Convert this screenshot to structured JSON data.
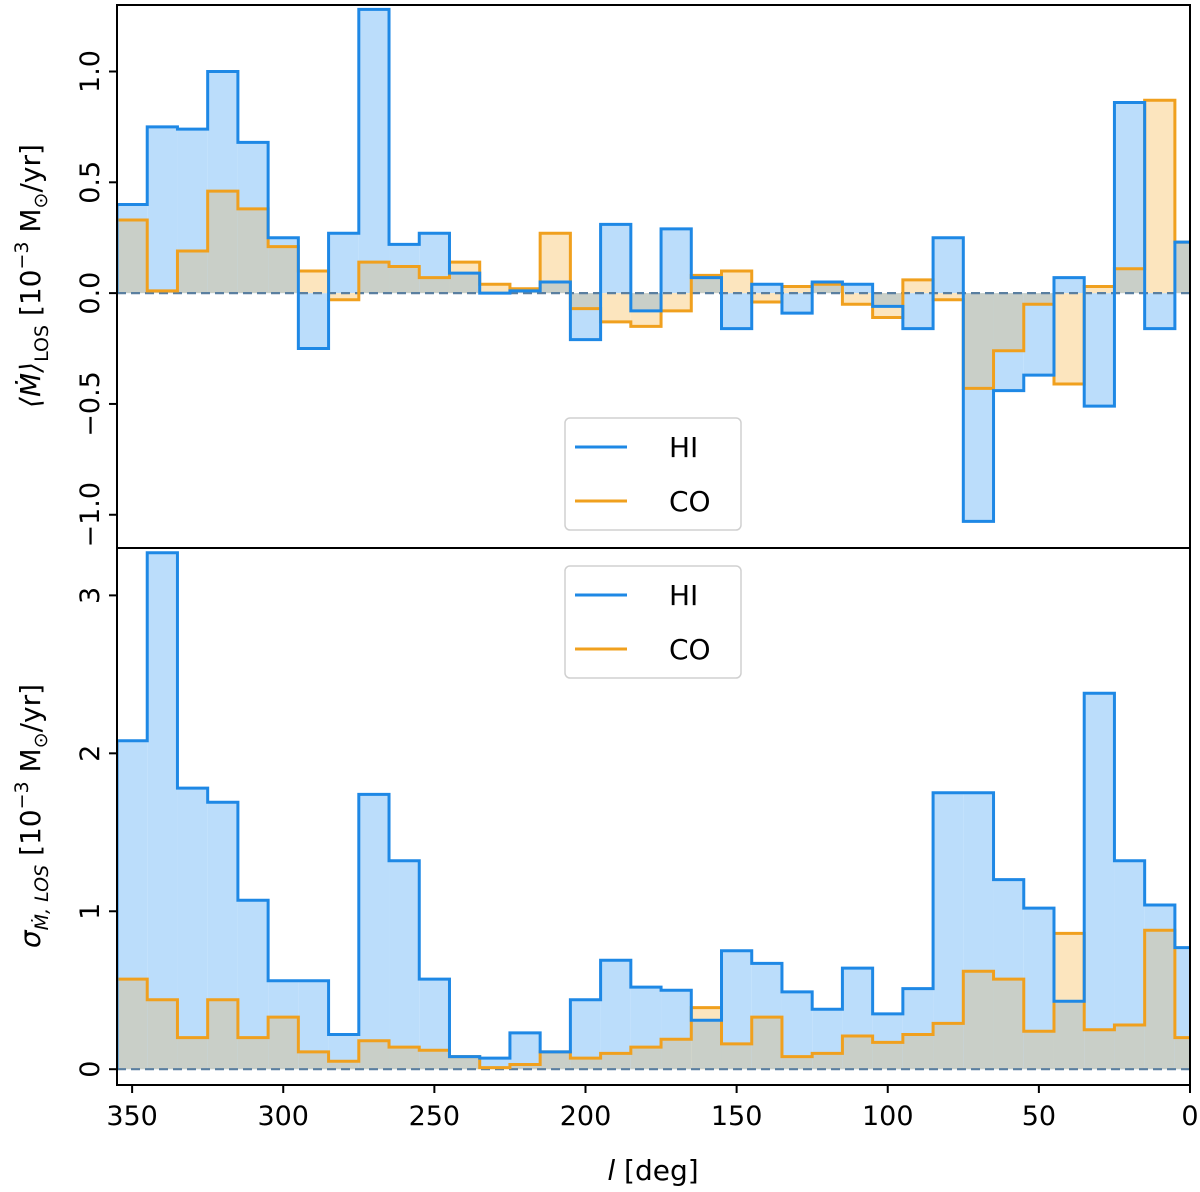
{
  "colors": {
    "hi": "#1E88E5",
    "hi_fill": "#BBDDFB",
    "co": "#F0A01E",
    "co_fill": "#FCE5BE",
    "overlap_fill": "#C9CFC8",
    "zero_line": "#5A7FA0"
  },
  "chart_data": [
    {
      "type": "step",
      "title": "",
      "ylabel": "⟨Ṁ⟩_LOS [10^−3 M_⊙/yr]",
      "ylabel_parts": {
        "main": "⟨",
        "dot_m": "Ṁ",
        "close": "⟩",
        "sub": "LOS",
        "units_open": " [10",
        "exp": "−3",
        "units_m": " M",
        "sun_sub": "⊙",
        "units_close": "/yr]"
      },
      "xlim": [
        355,
        0
      ],
      "ylim": [
        -1.15,
        1.3
      ],
      "yticks": [
        {
          "v": 1.0,
          "label": "1.0"
        },
        {
          "v": 0.5,
          "label": "0.5"
        },
        {
          "v": 0.0,
          "label": "0.0"
        },
        {
          "v": -0.5,
          "label": "−0.5"
        },
        {
          "v": -1.0,
          "label": "−1.0"
        }
      ],
      "legend_placement": "lower-center",
      "legend": [
        {
          "key": "hi",
          "label": "HI"
        },
        {
          "key": "co",
          "label": "CO"
        }
      ],
      "bin_left_edges": [
        355,
        345,
        335,
        325,
        315,
        305,
        295,
        285,
        275,
        265,
        255,
        245,
        235,
        225,
        215,
        205,
        195,
        185,
        175,
        165,
        155,
        145,
        135,
        125,
        115,
        105,
        95,
        85,
        75,
        65,
        55,
        45,
        35,
        25,
        15,
        5
      ],
      "bin_width": 10,
      "series": [
        {
          "key": "hi",
          "name": "HI",
          "values": [
            0.4,
            0.75,
            0.74,
            1.0,
            0.68,
            0.25,
            -0.25,
            0.27,
            1.28,
            0.22,
            0.27,
            0.09,
            0.0,
            0.01,
            0.05,
            -0.21,
            0.31,
            -0.08,
            0.29,
            0.07,
            -0.16,
            0.04,
            -0.09,
            0.05,
            0.04,
            -0.06,
            -0.16,
            0.25,
            -1.03,
            -0.44,
            -0.37,
            0.07,
            -0.51,
            0.86,
            -0.16,
            0.23
          ]
        },
        {
          "key": "co",
          "name": "CO",
          "values": [
            0.33,
            0.01,
            0.19,
            0.46,
            0.38,
            0.21,
            0.1,
            -0.03,
            0.14,
            0.12,
            0.07,
            0.14,
            0.04,
            0.02,
            0.27,
            -0.07,
            -0.13,
            -0.15,
            -0.08,
            0.08,
            0.1,
            -0.04,
            0.03,
            0.04,
            -0.05,
            -0.11,
            0.06,
            -0.03,
            -0.43,
            -0.26,
            -0.05,
            -0.41,
            0.03,
            0.11,
            0.87,
            0.23
          ]
        }
      ]
    },
    {
      "type": "step",
      "title": "",
      "ylabel": "σ_Ṁ,LOS [10^−3 M_⊙/yr]",
      "ylabel_parts": {
        "sigma": "σ",
        "sub": "Ṁ, LOS",
        "units_open": " [10",
        "exp": "−3",
        "units_m": " M",
        "sun_sub": "⊙",
        "units_close": "/yr]"
      },
      "xlabel": "l [deg]",
      "xlabel_parts": {
        "var": "l",
        "unit": " [deg]"
      },
      "xlim": [
        355,
        0
      ],
      "ylim": [
        -0.1,
        3.3
      ],
      "xticks": [
        {
          "v": 350,
          "label": "350"
        },
        {
          "v": 300,
          "label": "300"
        },
        {
          "v": 250,
          "label": "250"
        },
        {
          "v": 200,
          "label": "200"
        },
        {
          "v": 150,
          "label": "150"
        },
        {
          "v": 100,
          "label": "100"
        },
        {
          "v": 50,
          "label": "50"
        },
        {
          "v": 0,
          "label": "0"
        }
      ],
      "yticks": [
        {
          "v": 3,
          "label": "3"
        },
        {
          "v": 2,
          "label": "2"
        },
        {
          "v": 1,
          "label": "1"
        },
        {
          "v": 0,
          "label": "0"
        }
      ],
      "legend_placement": "upper-center",
      "legend": [
        {
          "key": "hi",
          "label": "HI"
        },
        {
          "key": "co",
          "label": "CO"
        }
      ],
      "bin_left_edges": [
        355,
        345,
        335,
        325,
        315,
        305,
        295,
        285,
        275,
        265,
        255,
        245,
        235,
        225,
        215,
        205,
        195,
        185,
        175,
        165,
        155,
        145,
        135,
        125,
        115,
        105,
        95,
        85,
        75,
        65,
        55,
        45,
        35,
        25,
        15,
        5
      ],
      "bin_width": 10,
      "series": [
        {
          "key": "hi",
          "name": "HI",
          "values": [
            2.08,
            3.27,
            1.78,
            1.69,
            1.07,
            0.56,
            0.56,
            0.22,
            1.74,
            1.32,
            0.57,
            0.08,
            0.07,
            0.23,
            0.11,
            0.44,
            0.69,
            0.52,
            0.5,
            0.31,
            0.75,
            0.67,
            0.49,
            0.38,
            0.64,
            0.35,
            0.51,
            1.75,
            1.75,
            1.2,
            1.02,
            0.43,
            2.38,
            1.32,
            1.04,
            0.77
          ]
        },
        {
          "key": "co",
          "name": "CO",
          "values": [
            0.57,
            0.44,
            0.2,
            0.44,
            0.2,
            0.33,
            0.11,
            0.05,
            0.18,
            0.14,
            0.12,
            0.08,
            0.01,
            0.03,
            0.11,
            0.07,
            0.1,
            0.14,
            0.19,
            0.39,
            0.16,
            0.33,
            0.08,
            0.1,
            0.21,
            0.17,
            0.22,
            0.29,
            0.62,
            0.57,
            0.24,
            0.86,
            0.25,
            0.28,
            0.88,
            0.2
          ]
        }
      ]
    }
  ]
}
